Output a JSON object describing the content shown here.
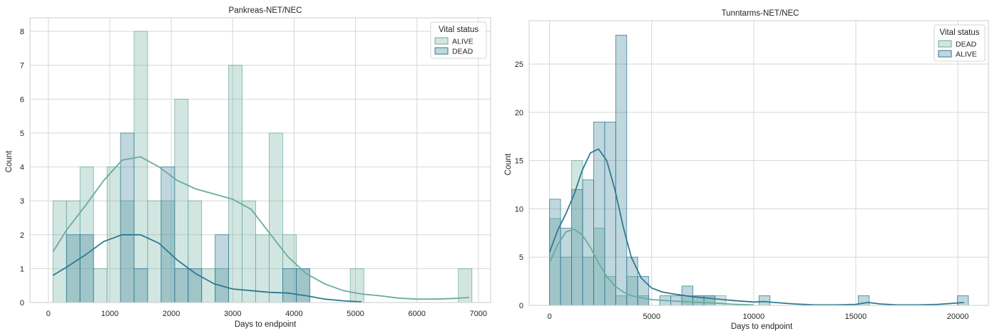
{
  "figure": {
    "colors": {
      "alive": "#6aab9c",
      "dead": "#2d7a93",
      "grid": "#d7d7d7",
      "frame": "#cccccc"
    }
  },
  "chart_data": [
    {
      "type": "histogram",
      "title": "Pankreas-NET/NEC",
      "xlabel": "Days to endpoint",
      "ylabel": "Count",
      "xlim": [
        -300,
        7200
      ],
      "ylim": [
        0,
        8.4
      ],
      "xticks": [
        "0",
        "1000",
        "2000",
        "3000",
        "4000",
        "5000",
        "6000",
        "7000"
      ],
      "xtick_values": [
        0,
        1000,
        2000,
        3000,
        4000,
        5000,
        6000,
        7000
      ],
      "yticks": [
        "0",
        "1",
        "2",
        "3",
        "4",
        "5",
        "6",
        "7",
        "8"
      ],
      "ytick_values": [
        0,
        1,
        2,
        3,
        4,
        5,
        6,
        7,
        8
      ],
      "grid": true,
      "legend": {
        "title": "Vital status",
        "placement": "top-right"
      },
      "bin_edges": [
        75,
        295,
        515,
        735,
        955,
        1175,
        1395,
        1615,
        1835,
        2055,
        2275,
        2495,
        2715,
        2935,
        3155,
        3375,
        3595,
        3815,
        4035,
        4255,
        4475,
        4695,
        4915,
        5135,
        5355,
        5575,
        5795,
        6015,
        6235,
        6455,
        6675,
        6895
      ],
      "series": [
        {
          "name": "ALIVE",
          "color": "#6aab9c",
          "counts": [
            3,
            3,
            4,
            1,
            4,
            3,
            8,
            3,
            3,
            6,
            3,
            1,
            1,
            7,
            3,
            2,
            5,
            2,
            1,
            0,
            0,
            0,
            1,
            0,
            0,
            0,
            0,
            0,
            0,
            0,
            1
          ],
          "kde": {
            "x": [
              75,
              300,
              600,
              900,
              1200,
              1500,
              1800,
              2100,
              2400,
              2700,
              3000,
              3300,
              3600,
              3900,
              4200,
              4500,
              4800,
              5100,
              5400,
              5700,
              6000,
              6300,
              6600,
              6850
            ],
            "y": [
              1.5,
              2.15,
              2.85,
              3.6,
              4.2,
              4.3,
              4.0,
              3.6,
              3.35,
              3.2,
              3.05,
              2.75,
              2.05,
              1.35,
              0.85,
              0.55,
              0.35,
              0.25,
              0.2,
              0.13,
              0.1,
              0.1,
              0.12,
              0.15
            ]
          }
        },
        {
          "name": "DEAD",
          "color": "#2d7a93",
          "counts": [
            0,
            2,
            2,
            0,
            0,
            5,
            1,
            0,
            4,
            1,
            1,
            0,
            2,
            0,
            0,
            0,
            0,
            1,
            1,
            0,
            0,
            0,
            0,
            0,
            0,
            0,
            0,
            0,
            0,
            0,
            0
          ],
          "kde": {
            "x": [
              75,
              300,
              600,
              900,
              1200,
              1500,
              1800,
              2100,
              2400,
              2700,
              3000,
              3300,
              3600,
              3900,
              4200,
              4500,
              4800,
              5100
            ],
            "y": [
              0.8,
              1.05,
              1.4,
              1.8,
              2.0,
              2.0,
              1.75,
              1.25,
              0.85,
              0.55,
              0.4,
              0.35,
              0.3,
              0.28,
              0.2,
              0.1,
              0.05,
              0.02
            ]
          }
        }
      ]
    },
    {
      "type": "histogram",
      "title": "Tunntarms-NET/NEC",
      "xlabel": "Days to endpoint",
      "ylabel": "Count",
      "xlim": [
        -1000,
        21500
      ],
      "ylim": [
        0,
        29.5
      ],
      "xticks": [
        "0",
        "5000",
        "10000",
        "15000",
        "20000"
      ],
      "xtick_values": [
        0,
        5000,
        10000,
        15000,
        20000
      ],
      "yticks": [
        "0",
        "5",
        "10",
        "15",
        "20",
        "25"
      ],
      "ytick_values": [
        0,
        5,
        10,
        15,
        20,
        25
      ],
      "grid": true,
      "legend": {
        "title": "Vital status",
        "placement": "top-right"
      },
      "bin_edges": [
        0,
        540,
        1080,
        1620,
        2160,
        2700,
        3240,
        3780,
        4320,
        4860,
        5400,
        5940,
        6480,
        7020,
        7560,
        8100,
        8640,
        9180,
        9720,
        10260,
        10800,
        11340,
        11880,
        12420,
        12960,
        13500,
        14040,
        14580,
        15120,
        15660,
        16200,
        16740,
        17280,
        17820,
        18360,
        18900,
        19440,
        19980,
        20520
      ],
      "series": [
        {
          "name": "DEAD",
          "color": "#6aab9c",
          "counts": [
            9,
            5,
            15,
            5,
            8,
            3,
            1,
            3,
            1,
            0,
            0,
            0,
            1,
            1,
            1,
            1,
            0,
            0,
            0,
            0,
            0,
            0,
            0,
            0,
            0,
            0,
            0,
            0,
            0,
            0,
            0,
            0,
            0,
            0,
            0,
            0,
            0,
            0
          ],
          "kde": {
            "x": [
              0,
              400,
              800,
              1200,
              1600,
              2000,
              2400,
              2800,
              3200,
              3600,
              4000,
              4500,
              5000,
              6000,
              7000,
              8000,
              9000,
              10000
            ],
            "y": [
              4.4,
              6.3,
              7.6,
              7.9,
              7.3,
              6.0,
              4.4,
              3.0,
              2.0,
              1.4,
              1.0,
              0.8,
              0.6,
              0.45,
              0.35,
              0.25,
              0.12,
              0.05
            ]
          }
        },
        {
          "name": "ALIVE",
          "color": "#2d7a93",
          "counts": [
            11,
            8,
            12,
            13,
            19,
            19,
            28,
            5,
            3,
            0,
            1,
            1,
            2,
            1,
            1,
            0,
            0,
            0,
            0,
            1,
            0,
            0,
            0,
            0,
            0,
            0,
            0,
            0,
            1,
            0,
            0,
            0,
            0,
            0,
            0,
            0,
            0,
            1
          ],
          "kde": {
            "x": [
              0,
              400,
              800,
              1200,
              1600,
              2000,
              2400,
              2800,
              3200,
              3600,
              4000,
              4500,
              5000,
              5500,
              6000,
              7000,
              8000,
              9000,
              10000,
              10500,
              11000,
              12000,
              13000,
              14000,
              15000,
              15600,
              16200,
              17000,
              18000,
              19000,
              20000,
              20300
            ],
            "y": [
              5.5,
              7.8,
              9.5,
              11.5,
              14.0,
              15.8,
              16.2,
              15.0,
              12.0,
              8.2,
              5.0,
              2.8,
              1.8,
              1.4,
              1.2,
              0.9,
              0.7,
              0.5,
              0.35,
              0.4,
              0.3,
              0.15,
              0.05,
              0.05,
              0.1,
              0.3,
              0.15,
              0.05,
              0.05,
              0.1,
              0.25,
              0.3
            ]
          }
        }
      ]
    }
  ]
}
